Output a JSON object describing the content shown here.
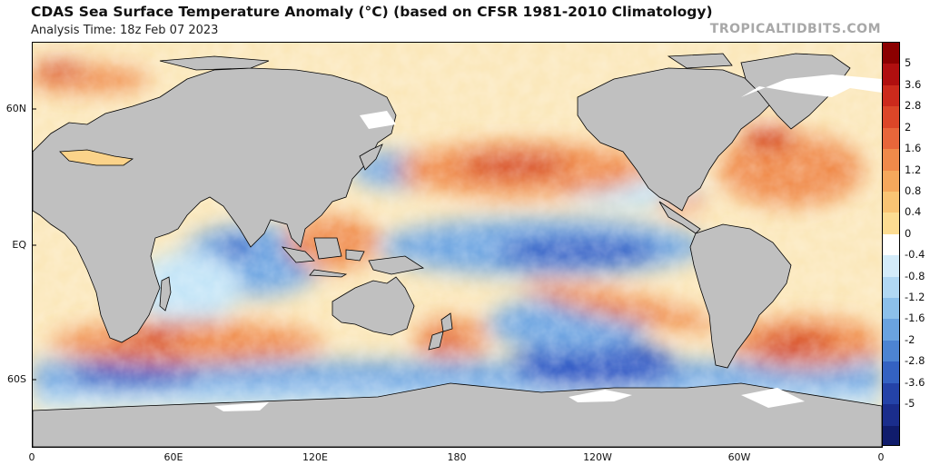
{
  "header": {
    "title": "CDAS Sea Surface Temperature Anomaly (°C) (based on CFSR 1981-2010 Climatology)",
    "subtitle": "Analysis Time: 18z Feb 07 2023",
    "brand": "TROPICALTIDBITS.COM"
  },
  "map": {
    "lat_labels": [
      "60N",
      "EQ",
      "60S"
    ],
    "lon_labels": [
      "0",
      "60E",
      "120E",
      "180",
      "120W",
      "60W",
      "0"
    ],
    "colors": {
      "land": "#c0c0c0",
      "coast": "#000000",
      "warm_strong": "#d0301e",
      "warm": "#f08a4a",
      "warm_weak": "#fbd38a",
      "neutral": "#ffffff",
      "cool_weak": "#c2e4f7",
      "cool": "#6ea6e2",
      "cool_strong": "#2e56c4"
    }
  },
  "colorbar": {
    "labels": [
      "5",
      "3.6",
      "2.8",
      "2",
      "1.6",
      "1.2",
      "0.8",
      "0.4",
      "0",
      "-0.4",
      "-0.8",
      "-1.2",
      "-1.6",
      "-2",
      "-2.8",
      "-3.6",
      "-5"
    ],
    "colors": [
      "#8b0000",
      "#b00f0f",
      "#cc2a1c",
      "#dc4628",
      "#e8663a",
      "#f08a4a",
      "#f5a85c",
      "#f9c474",
      "#fcdc92",
      "#ffffff",
      "#d4ecfa",
      "#b1d8f3",
      "#8cc0ea",
      "#6aa3df",
      "#4d84d2",
      "#3462c2",
      "#2443a8",
      "#1a2d8c",
      "#101c6c"
    ]
  }
}
